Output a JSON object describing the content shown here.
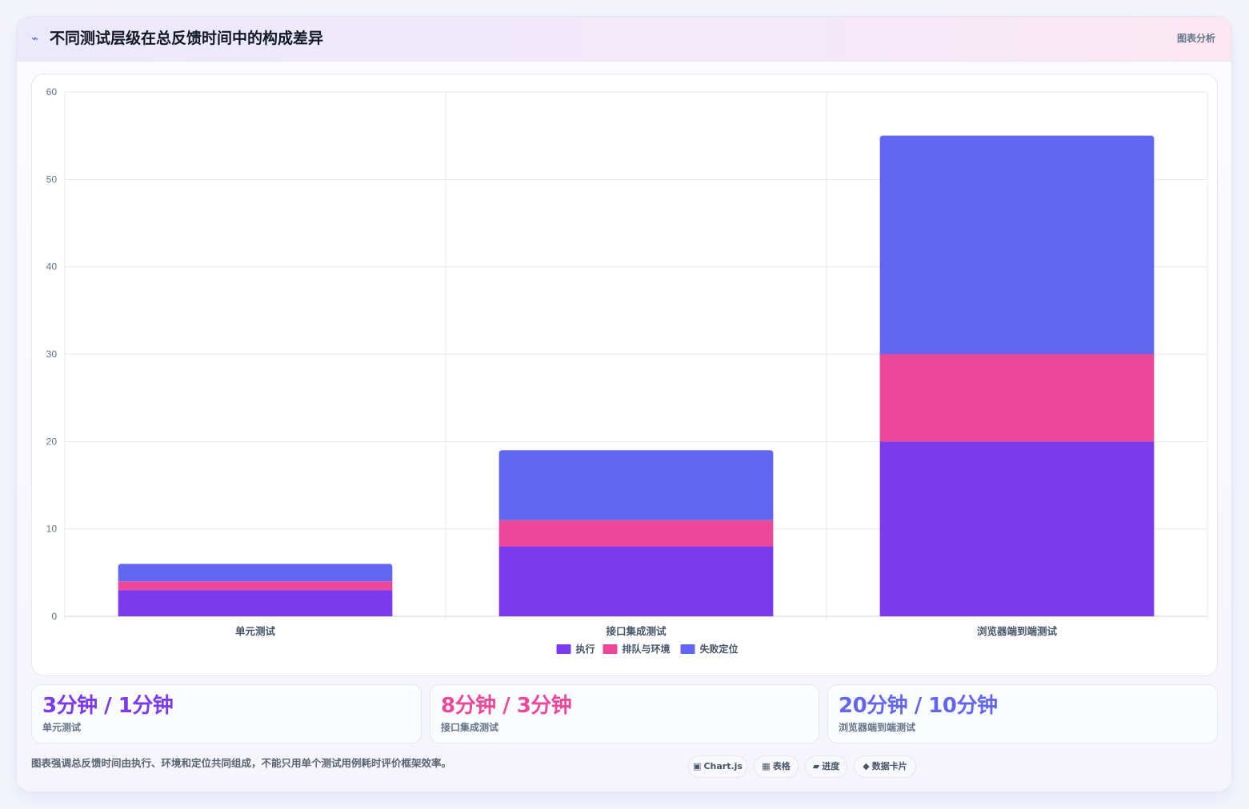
{
  "header": {
    "icon": "lightning-icon",
    "title": "不同测试层级在总反馈时间中的构成差异",
    "tag": "图表分析"
  },
  "chart_data": {
    "type": "bar",
    "stacked": true,
    "categories": [
      "单元测试",
      "接口集成测试",
      "浏览器端到端测试"
    ],
    "series": [
      {
        "name": "执行",
        "color": "#7c3aed",
        "values": [
          3,
          8,
          20
        ]
      },
      {
        "name": "排队与环境",
        "color": "#ec4899",
        "values": [
          1,
          3,
          10
        ]
      },
      {
        "name": "失败定位",
        "color": "#6366f1",
        "values": [
          2,
          8,
          25
        ]
      }
    ],
    "ylim": [
      0,
      60
    ],
    "yticks": [
      0,
      10,
      20,
      30,
      40,
      50,
      60
    ],
    "grid": true,
    "legend_position": "bottom"
  },
  "stats": [
    {
      "value": "3分钟 / 1分钟",
      "label": "单元测试",
      "color": "#7c3aed"
    },
    {
      "value": "8分钟 / 3分钟",
      "label": "接口集成测试",
      "color": "#ec4899"
    },
    {
      "value": "20分钟 / 10分钟",
      "label": "浏览器端到端测试",
      "color": "#6366f1"
    }
  ],
  "footnote": "图表强调总反馈时间由执行、环境和定位共同组成，不能只用单个测试用例耗时评价框架效率。",
  "pills": [
    {
      "glyph": "▣",
      "label": "Chart.js"
    },
    {
      "glyph": "▦",
      "label": "表格"
    },
    {
      "glyph": "▰",
      "label": "进度"
    },
    {
      "glyph": "◆",
      "label": "数据卡片"
    }
  ]
}
